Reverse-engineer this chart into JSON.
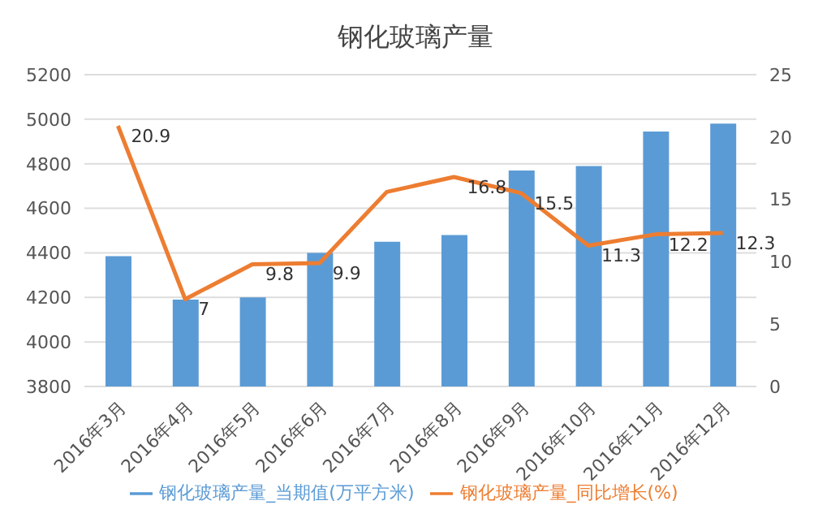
{
  "chart_data": {
    "type": "bar",
    "title": "钢化玻璃产量",
    "categories": [
      "2016年3月",
      "2016年4月",
      "2016年5月",
      "2016年6月",
      "2016年7月",
      "2016年8月",
      "2016年9月",
      "2016年10月",
      "2016年11月",
      "2016年12月"
    ],
    "series": [
      {
        "name": "钢化玻璃产量_当期值(万平方米)",
        "color": "#5b9bd5",
        "values": [
          4385,
          4190,
          4200,
          4400,
          4450,
          4480,
          4770,
          4790,
          4945,
          4980
        ]
      },
      {
        "name": "钢化玻璃产量_同比增长(%)",
        "type": "line",
        "axis": "y2",
        "color": "#ed7d31",
        "values": [
          20.9,
          7,
          9.8,
          9.9,
          15.6,
          16.8,
          15.5,
          11.3,
          12.2,
          12.3
        ],
        "value_labels": [
          "20.9",
          "7",
          "9.8",
          "9.9",
          null,
          "16.8",
          "15.5",
          "11.3",
          "12.2",
          "12.3"
        ]
      }
    ],
    "ylim": [
      3800,
      5200
    ],
    "yticks": [
      3800,
      4000,
      4200,
      4400,
      4600,
      4800,
      5000,
      5200
    ],
    "y2lim": [
      0,
      25
    ],
    "y2ticks": [
      0,
      5,
      10,
      15,
      20,
      25
    ],
    "grid": "y",
    "legend": "bottom",
    "marker": "none"
  }
}
